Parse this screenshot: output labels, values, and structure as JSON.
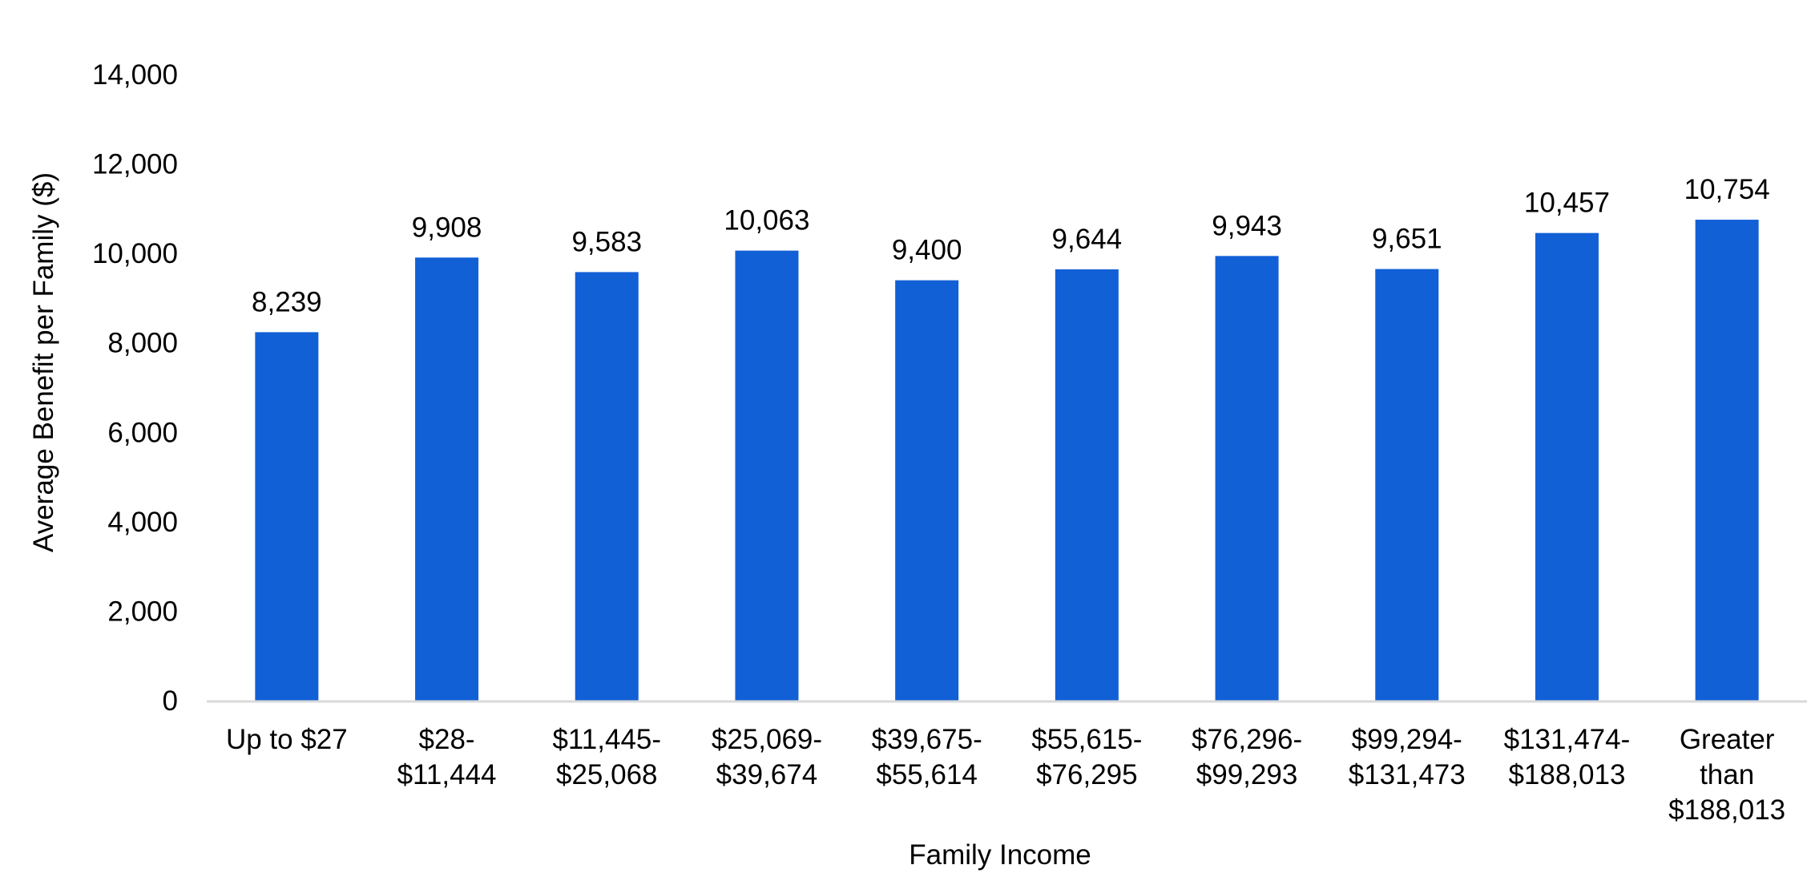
{
  "chart_data": {
    "type": "bar",
    "title": "",
    "xlabel": "Family Income",
    "ylabel": "Average Benefit per Family ($)",
    "ylim": [
      0,
      14000
    ],
    "yticks": [
      0,
      2000,
      4000,
      6000,
      8000,
      10000,
      12000,
      14000
    ],
    "ytick_labels": [
      "0",
      "2,000",
      "4,000",
      "6,000",
      "8,000",
      "10,000",
      "12,000",
      "14,000"
    ],
    "grid": false,
    "legend": "none",
    "bar_color": "#1160D6",
    "axis_color": "#D9D9D9",
    "categories": [
      [
        "Up to $27"
      ],
      [
        "$28-",
        "$11,444"
      ],
      [
        "$11,445-",
        "$25,068"
      ],
      [
        "$25,069-",
        "$39,674"
      ],
      [
        "$39,675-",
        "$55,614"
      ],
      [
        "$55,615-",
        "$76,295"
      ],
      [
        "$76,296-",
        "$99,293"
      ],
      [
        "$99,294-",
        "$131,473"
      ],
      [
        "$131,474-",
        "$188,013"
      ],
      [
        "Greater",
        "than",
        "$188,013"
      ]
    ],
    "values": [
      8239,
      9908,
      9583,
      10063,
      9400,
      9644,
      9943,
      9651,
      10457,
      10754
    ],
    "value_labels": [
      "8,239",
      "9,908",
      "9,583",
      "10,063",
      "9,400",
      "9,644",
      "9,943",
      "9,651",
      "10,457",
      "10,754"
    ]
  }
}
